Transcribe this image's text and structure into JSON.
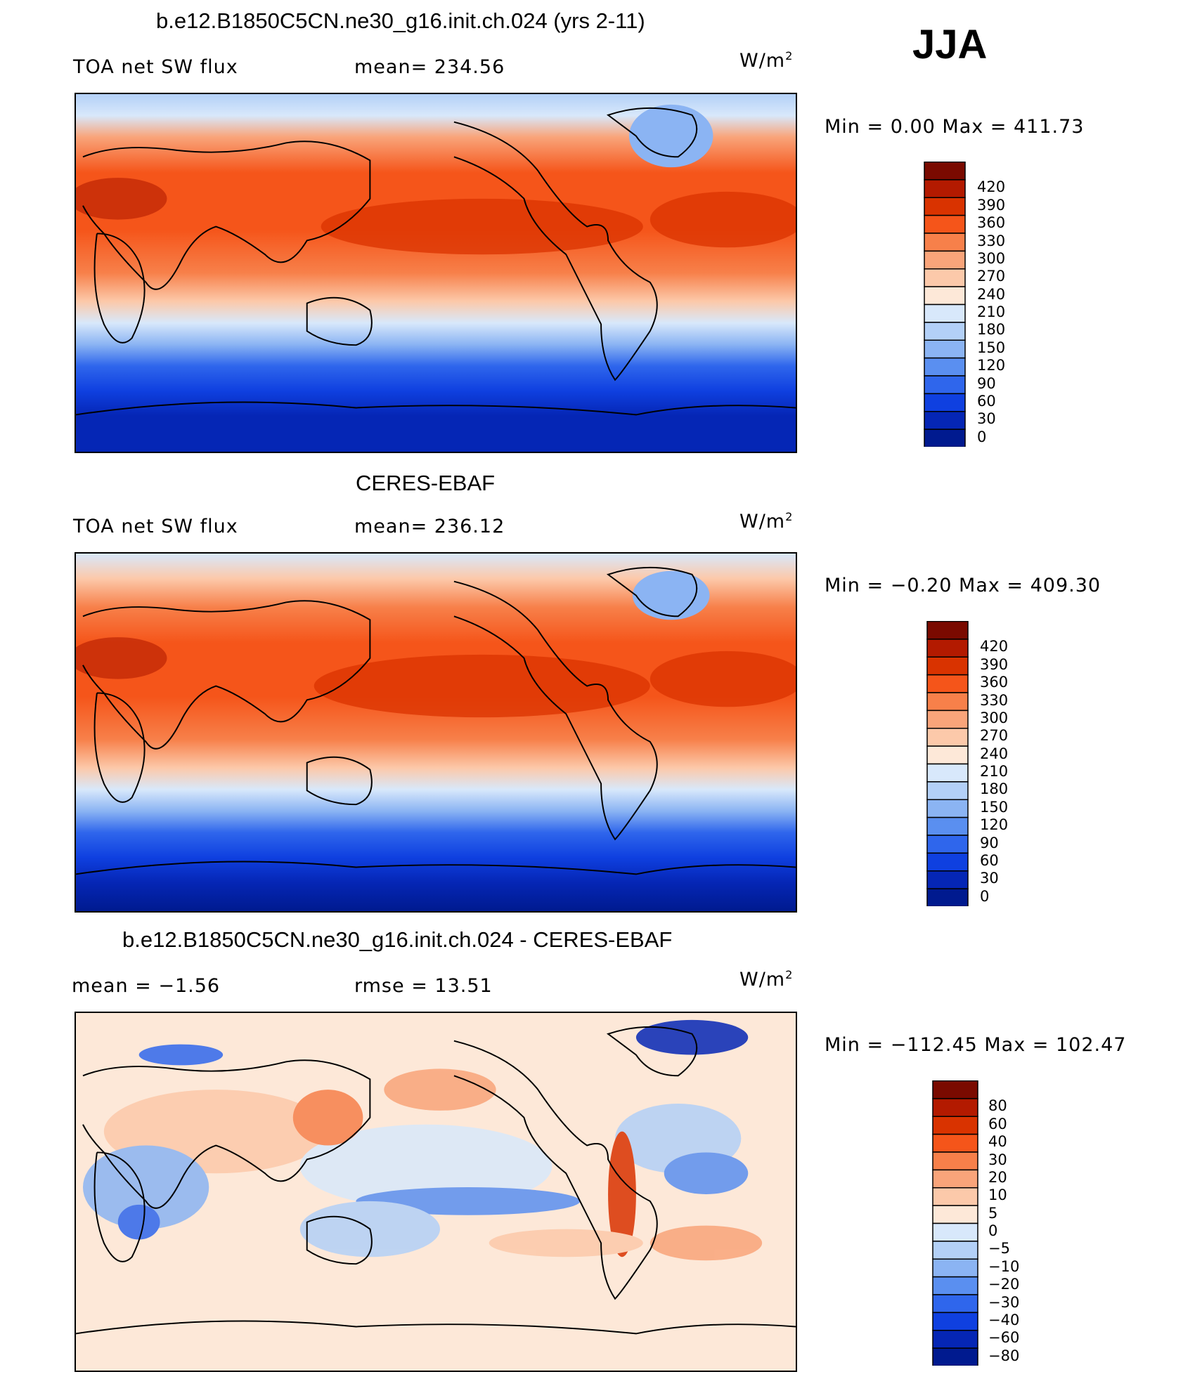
{
  "season": "JJA",
  "panels": [
    {
      "title": "b.e12.B1850C5CN.ne30_g16.init.ch.024 (yrs 2-11)",
      "left_label": "TOA net SW flux",
      "stat_label": "mean= 234.56",
      "units": "W/m",
      "units_exp": "2",
      "minmax": "Min =    0.00 Max = 411.73",
      "colorbar": {
        "labels": [
          "420",
          "390",
          "360",
          "330",
          "300",
          "270",
          "240",
          "210",
          "180",
          "150",
          "120",
          "90",
          "60",
          "30",
          "0"
        ],
        "colors": [
          "#7a0a00",
          "#b31a00",
          "#d93300",
          "#f5551a",
          "#f7804a",
          "#f9a47a",
          "#fcc9aa",
          "#fde8d8",
          "#d8e8fb",
          "#b3d0f7",
          "#8bb4f3",
          "#5a8ff0",
          "#2f66ec",
          "#0f40e0",
          "#0526b5",
          "#001a8f"
        ]
      }
    },
    {
      "title": "CERES-EBAF",
      "left_label": "TOA net SW flux",
      "stat_label": "mean= 236.12",
      "units": "W/m",
      "units_exp": "2",
      "minmax": "Min =  −0.20 Max = 409.30",
      "colorbar": {
        "labels": [
          "420",
          "390",
          "360",
          "330",
          "300",
          "270",
          "240",
          "210",
          "180",
          "150",
          "120",
          "90",
          "60",
          "30",
          "0"
        ],
        "colors": [
          "#7a0a00",
          "#b31a00",
          "#d93300",
          "#f5551a",
          "#f7804a",
          "#f9a47a",
          "#fcc9aa",
          "#fde8d8",
          "#d8e8fb",
          "#b3d0f7",
          "#8bb4f3",
          "#5a8ff0",
          "#2f66ec",
          "#0f40e0",
          "#0526b5",
          "#001a8f"
        ]
      }
    },
    {
      "title": "b.e12.B1850C5CN.ne30_g16.init.ch.024 - CERES-EBAF",
      "left_label": "mean =   −1.56",
      "stat_label": "rmse =   13.51",
      "units": "W/m",
      "units_exp": "2",
      "minmax": "Min = −112.45 Max = 102.47",
      "colorbar": {
        "labels": [
          "80",
          "60",
          "40",
          "30",
          "20",
          "10",
          "5",
          "0",
          "−5",
          "−10",
          "−20",
          "−30",
          "−40",
          "−60",
          "−80"
        ],
        "colors": [
          "#7a0a00",
          "#b31a00",
          "#d93300",
          "#f5551a",
          "#f7804a",
          "#f9a47a",
          "#fcc9aa",
          "#fde8d8",
          "#d8e8fb",
          "#b3d0f7",
          "#8bb4f3",
          "#5a8ff0",
          "#2f66ec",
          "#0f40e0",
          "#0526b5",
          "#001a8f"
        ]
      }
    }
  ]
}
